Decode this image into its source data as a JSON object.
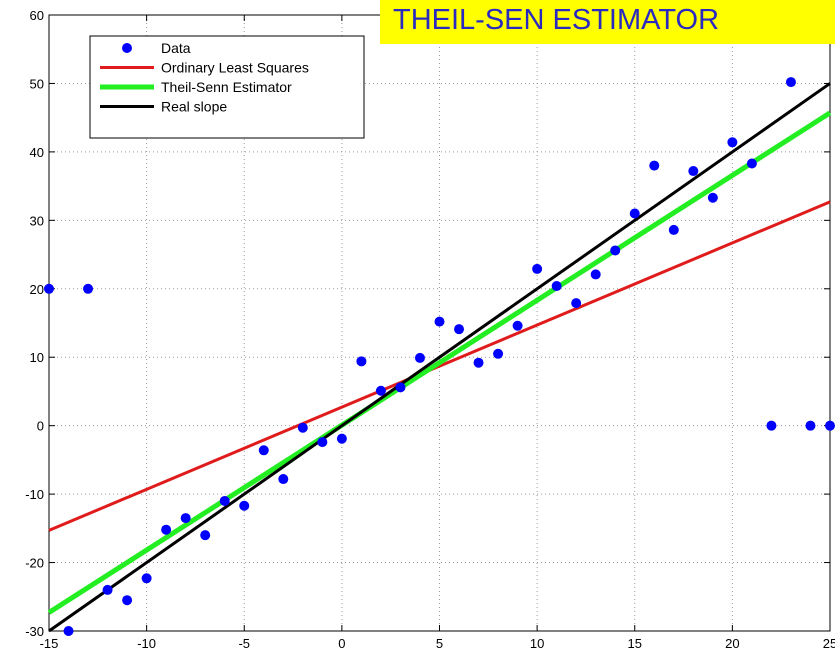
{
  "banner": {
    "text": "THEIL-SEN ESTIMATOR",
    "background": "#ffff00",
    "color": "#2a2ac0"
  },
  "chart_data": {
    "type": "scatter",
    "xlim": [
      -15,
      25
    ],
    "ylim": [
      -30,
      60
    ],
    "xticks": [
      -15,
      -10,
      -5,
      0,
      5,
      10,
      15,
      20,
      25
    ],
    "yticks": [
      -30,
      -20,
      -10,
      0,
      10,
      20,
      30,
      40,
      50,
      60
    ],
    "grid": true,
    "legend_position": "top-left",
    "scatter": {
      "name": "Data",
      "color": "#0000ff",
      "x": [
        -15,
        -14,
        -13,
        -12,
        -11,
        -10,
        -9,
        -8,
        -7,
        -6,
        -5,
        -4,
        -3,
        -2,
        -1,
        0,
        1,
        2,
        3,
        4,
        5,
        6,
        7,
        8,
        9,
        10,
        11,
        12,
        13,
        14,
        15,
        16,
        17,
        18,
        19,
        20,
        21,
        22,
        23,
        24,
        25
      ],
      "y": [
        20,
        -30,
        20,
        -24,
        -25.5,
        -22.3,
        -15.2,
        -13.5,
        -16,
        -11,
        -11.7,
        -3.6,
        -7.8,
        -0.3,
        -2.4,
        -1.9,
        9.4,
        5.1,
        5.6,
        9.9,
        15.2,
        14.1,
        9.2,
        10.5,
        14.6,
        22.9,
        20.4,
        17.9,
        22.1,
        25.6,
        31,
        38,
        28.6,
        37.2,
        33.3,
        41.4,
        38.3,
        0,
        50.2,
        0,
        0
      ]
    },
    "lines": [
      {
        "name": "Ordinary Least Squares",
        "color": "#e01b1b",
        "width": 3,
        "x": [
          -15,
          25
        ],
        "y": [
          -15.3,
          32.7
        ]
      },
      {
        "name": "Theil-Senn Estimator",
        "color": "#22ee22",
        "width": 5,
        "x": [
          -15,
          25
        ],
        "y": [
          -27.3,
          45.7
        ]
      },
      {
        "name": "Real slope",
        "color": "#000000",
        "width": 3,
        "x": [
          -15,
          25
        ],
        "y": [
          -30,
          50
        ]
      }
    ],
    "legend": [
      "Data",
      "Ordinary Least Squares",
      "Theil-Senn Estimator",
      "Real slope"
    ]
  }
}
